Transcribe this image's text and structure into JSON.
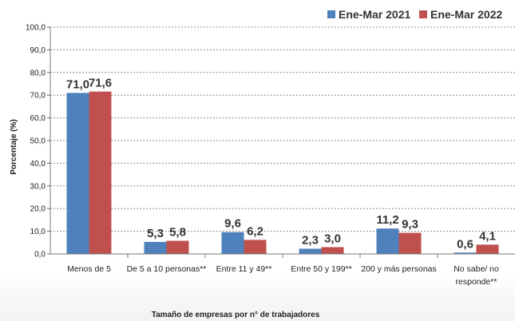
{
  "chart_data": {
    "type": "bar",
    "title": "",
    "xlabel": "Tamaño de empresas por n° de trabajadores",
    "ylabel": "Porcentaje (%)",
    "ylim": [
      0,
      100
    ],
    "yticks": [
      "0,0",
      "10,0",
      "20,0",
      "30,0",
      "40,0",
      "50,0",
      "60,0",
      "70,0",
      "80,0",
      "90,0",
      "100,0"
    ],
    "grid": true,
    "legend_position": "top-right",
    "categories": [
      [
        "Menos de 5"
      ],
      [
        "De 5 a 10 personas**"
      ],
      [
        "Entre 11 y 49**"
      ],
      [
        "Entre 50 y 199**"
      ],
      [
        "200 y más personas"
      ],
      [
        "No sabe/ no",
        "responde**"
      ]
    ],
    "series": [
      {
        "name": "Ene-Mar 2021",
        "color": "#4f81bd",
        "values": [
          71.0,
          5.3,
          9.6,
          2.3,
          11.2,
          0.6
        ],
        "labels": [
          "71,0",
          "5,3",
          "9,6",
          "2,3",
          "11,2",
          "0,6"
        ]
      },
      {
        "name": "Ene-Mar 2022",
        "color": "#c0504d",
        "values": [
          71.6,
          5.8,
          6.2,
          3.0,
          9.3,
          4.1
        ],
        "labels": [
          "71,6",
          "5,8",
          "6,2",
          "3,0",
          "9,3",
          "4,1"
        ]
      }
    ]
  }
}
